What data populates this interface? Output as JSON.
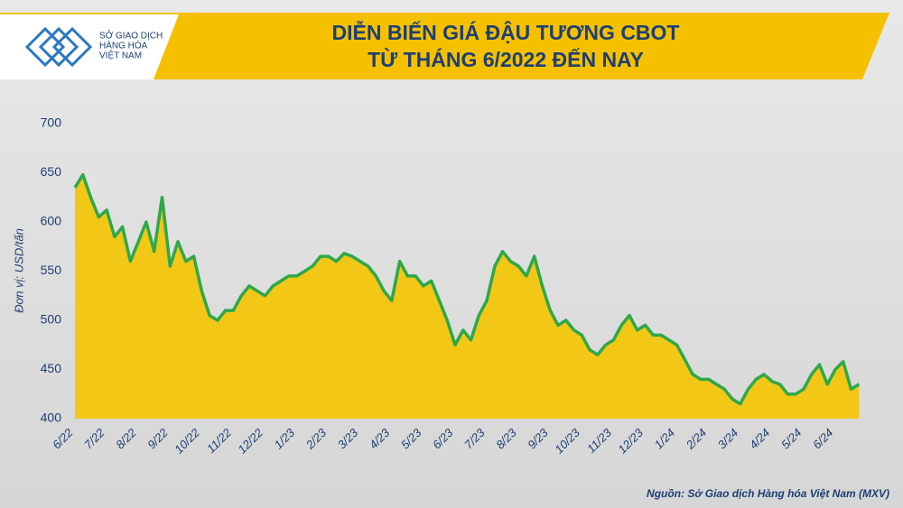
{
  "logo": [
    "SỞ GIAO DỊCH",
    "HÀNG HÓA",
    "VIỆT NAM"
  ],
  "chart_data": {
    "type": "area",
    "title": [
      "DIỄN BIẾN GIÁ ĐẬU TƯƠNG CBOT",
      "TỪ THÁNG 6/2022 ĐẾN NAY"
    ],
    "ylabel": "Đơn vị: USD/tấn",
    "source": "Nguồn: Sở Giao dịch Hàng hóa Việt Nam (MXV)",
    "categories": [
      "6/22",
      null,
      null,
      null,
      "7/22",
      null,
      null,
      null,
      "8/22",
      null,
      null,
      null,
      "9/22",
      null,
      null,
      null,
      "10/22",
      null,
      null,
      null,
      "11/22",
      null,
      null,
      null,
      "12/22",
      null,
      null,
      null,
      "1/23",
      null,
      null,
      null,
      "2/23",
      null,
      null,
      null,
      "3/23",
      null,
      null,
      null,
      "4/23",
      null,
      null,
      null,
      "5/23",
      null,
      null,
      null,
      "6/23",
      null,
      null,
      null,
      "7/23",
      null,
      null,
      null,
      "8/23",
      null,
      null,
      null,
      "9/23",
      null,
      null,
      null,
      "10/23",
      null,
      null,
      null,
      "11/23",
      null,
      null,
      null,
      "12/23",
      null,
      null,
      null,
      "1/24",
      null,
      null,
      null,
      "2/24",
      null,
      null,
      null,
      "3/24",
      null,
      null,
      null,
      "4/24",
      null,
      null,
      null,
      "5/24",
      null,
      null,
      null,
      "6/24",
      null,
      null,
      null
    ],
    "values": [
      635,
      648,
      625,
      605,
      612,
      585,
      595,
      560,
      580,
      600,
      570,
      625,
      555,
      580,
      560,
      565,
      530,
      505,
      500,
      510,
      510,
      525,
      535,
      530,
      525,
      535,
      540,
      545,
      545,
      550,
      555,
      565,
      565,
      560,
      568,
      565,
      560,
      555,
      545,
      530,
      520,
      560,
      545,
      545,
      535,
      540,
      520,
      500,
      475,
      490,
      480,
      505,
      520,
      555,
      570,
      560,
      555,
      545,
      565,
      535,
      510,
      495,
      500,
      490,
      485,
      470,
      465,
      475,
      480,
      495,
      505,
      490,
      495,
      485,
      485,
      480,
      475,
      460,
      445,
      440,
      440,
      435,
      430,
      420,
      415,
      430,
      440,
      445,
      438,
      435,
      425,
      425,
      430,
      445,
      455,
      435,
      450,
      458,
      430,
      435
    ],
    "color": "#2ea84a",
    "fill": "#f5c400",
    "ylim": [
      400,
      700
    ],
    "yticks": [
      400,
      450,
      500,
      550,
      600,
      650,
      700
    ]
  }
}
